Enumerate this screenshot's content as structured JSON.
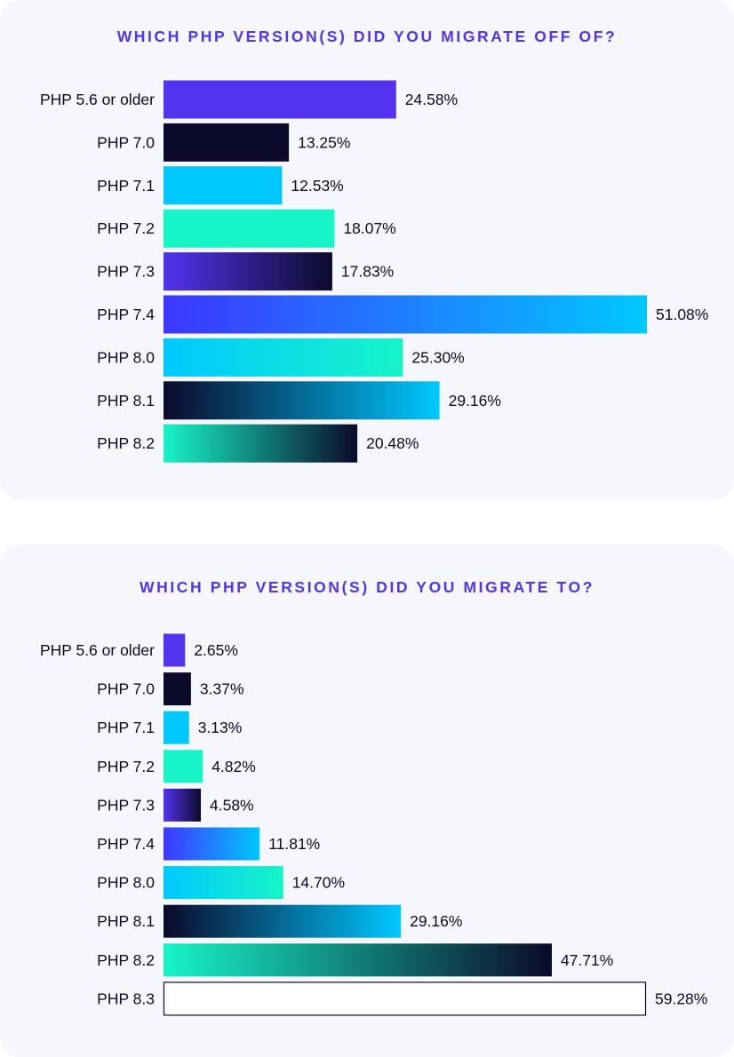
{
  "colors": {
    "purple": "#5333ed",
    "navy": "#0b0a2a",
    "cyan": "#00c8ff",
    "mint": "#17f4c8",
    "blue": "#3d36ff",
    "white": "#ffffff"
  },
  "chart_data": [
    {
      "type": "bar",
      "orientation": "horizontal",
      "title": "WHICH PHP VERSION(S) DID YOU MIGRATE OFF OF?",
      "categories": [
        "PHP 5.6 or older",
        "PHP 7.0",
        "PHP 7.1",
        "PHP 7.2",
        "PHP 7.3",
        "PHP 7.4",
        "PHP 8.0",
        "PHP 8.1",
        "PHP 8.2"
      ],
      "values": [
        24.58,
        13.25,
        12.53,
        18.07,
        17.83,
        51.08,
        25.3,
        29.16,
        20.48
      ],
      "value_labels": [
        "24.58%",
        "13.25%",
        "12.53%",
        "18.07%",
        "17.83%",
        "51.08%",
        "25.30%",
        "29.16%",
        "20.48%"
      ],
      "bar_styles": [
        "purple",
        "navy",
        "cyan",
        "mint",
        "purple-navy",
        "blue-cyan",
        "cyan-mint",
        "navy-cyan",
        "mint-navy"
      ],
      "unit": "%",
      "grid": false,
      "legend": "none"
    },
    {
      "type": "bar",
      "orientation": "horizontal",
      "title": "WHICH PHP VERSION(S) DID YOU MIGRATE TO?",
      "categories": [
        "PHP 5.6 or older",
        "PHP 7.0",
        "PHP 7.1",
        "PHP 7.2",
        "PHP 7.3",
        "PHP 7.4",
        "PHP 8.0",
        "PHP 8.1",
        "PHP 8.2",
        "PHP 8.3"
      ],
      "values": [
        2.65,
        3.37,
        3.13,
        4.82,
        4.58,
        11.81,
        14.7,
        29.16,
        47.71,
        59.28
      ],
      "value_labels": [
        "2.65%",
        "3.37%",
        "3.13%",
        "4.82%",
        "4.58%",
        "11.81%",
        "14.70%",
        "29.16%",
        "47.71%",
        "59.28%"
      ],
      "bar_styles": [
        "purple",
        "navy",
        "cyan",
        "mint",
        "purple-navy",
        "blue-cyan",
        "cyan-mint",
        "navy-cyan",
        "mint-navy",
        "white"
      ],
      "unit": "%",
      "grid": false,
      "legend": "none"
    }
  ]
}
